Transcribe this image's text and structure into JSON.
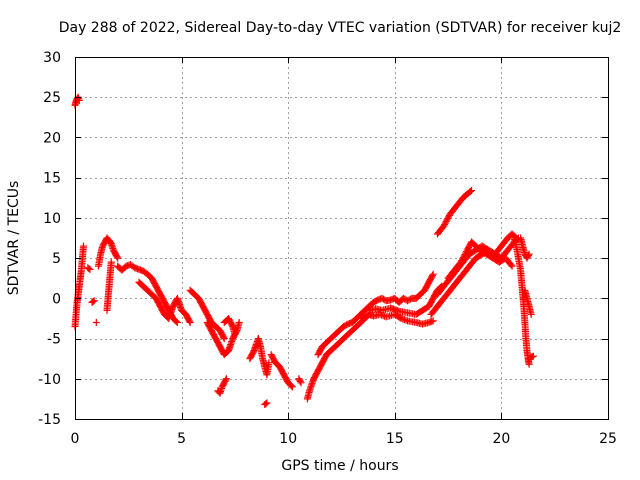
{
  "chart_data": {
    "type": "scatter",
    "title": "Day 288 of 2022, Sidereal Day-to-day VTEC variation (SDTVAR) for receiver kuj2",
    "xlabel": "GPS time / hours",
    "ylabel": "SDTVAR / TECUs",
    "xlim": [
      0,
      25
    ],
    "ylim": [
      -15,
      30
    ],
    "x_ticks": [
      0,
      5,
      10,
      15,
      20,
      25
    ],
    "y_ticks": [
      -15,
      -10,
      -5,
      0,
      5,
      10,
      15,
      20,
      25,
      30
    ],
    "grid": true,
    "marker": "+",
    "series_color": "#ff0000",
    "series": [
      {
        "name": "SDTVAR",
        "segments": [
          [
            [
              0.0,
              24.0
            ],
            [
              0.05,
              24.5
            ],
            [
              0.1,
              24.8
            ],
            [
              0.15,
              25.0
            ],
            [
              0.2,
              24.6
            ]
          ],
          [
            [
              0.0,
              -3.5
            ],
            [
              0.05,
              -2.0
            ],
            [
              0.1,
              -0.5
            ],
            [
              0.15,
              0.5
            ],
            [
              0.2,
              1.5
            ],
            [
              0.25,
              2.5
            ],
            [
              0.3,
              3.5
            ],
            [
              0.35,
              5.0
            ],
            [
              0.4,
              6.5
            ]
          ],
          [
            [
              0.6,
              3.8
            ],
            [
              0.7,
              3.6
            ]
          ],
          [
            [
              0.8,
              -0.5
            ],
            [
              0.9,
              -0.3
            ]
          ],
          [
            [
              1.0,
              -3.0
            ]
          ],
          [
            [
              1.1,
              4.0
            ],
            [
              1.2,
              5.5
            ],
            [
              1.3,
              6.5
            ],
            [
              1.4,
              7.0
            ],
            [
              1.5,
              7.5
            ],
            [
              1.6,
              7.2
            ],
            [
              1.7,
              6.8
            ],
            [
              1.8,
              6.0
            ],
            [
              1.9,
              5.5
            ],
            [
              2.0,
              5.0
            ]
          ],
          [
            [
              1.5,
              -1.5
            ],
            [
              1.55,
              0.0
            ],
            [
              1.6,
              1.5
            ],
            [
              1.65,
              3.0
            ],
            [
              1.7,
              4.5
            ]
          ],
          [
            [
              2.0,
              4.0
            ],
            [
              2.2,
              3.5
            ],
            [
              2.4,
              4.0
            ],
            [
              2.6,
              4.2
            ],
            [
              2.8,
              3.8
            ],
            [
              3.0,
              3.6
            ],
            [
              3.2,
              3.4
            ],
            [
              3.4,
              3.0
            ],
            [
              3.6,
              2.5
            ],
            [
              3.8,
              1.5
            ],
            [
              4.0,
              0.5
            ],
            [
              4.2,
              -0.5
            ],
            [
              4.4,
              -1.5
            ],
            [
              4.6,
              -2.5
            ],
            [
              4.8,
              -3.0
            ]
          ],
          [
            [
              3.0,
              2.0
            ],
            [
              3.2,
              1.5
            ],
            [
              3.4,
              1.0
            ],
            [
              3.6,
              0.5
            ],
            [
              3.8,
              0.0
            ],
            [
              4.0,
              -1.0
            ],
            [
              4.2,
              -2.0
            ],
            [
              4.4,
              -2.5
            ],
            [
              4.6,
              -1.0
            ],
            [
              4.8,
              0.0
            ],
            [
              5.0,
              -1.5
            ],
            [
              5.2,
              -2.0
            ],
            [
              5.4,
              -3.0
            ]
          ],
          [
            [
              5.4,
              1.0
            ],
            [
              5.6,
              0.5
            ],
            [
              5.8,
              0.0
            ],
            [
              6.0,
              -1.0
            ],
            [
              6.2,
              -2.0
            ],
            [
              6.4,
              -3.0
            ],
            [
              6.6,
              -3.5
            ],
            [
              6.8,
              -4.0
            ],
            [
              7.0,
              -5.0
            ]
          ],
          [
            [
              6.2,
              -3.0
            ],
            [
              6.4,
              -4.0
            ],
            [
              6.6,
              -5.0
            ],
            [
              6.8,
              -6.0
            ],
            [
              7.0,
              -7.0
            ],
            [
              7.2,
              -6.5
            ],
            [
              7.4,
              -5.0
            ],
            [
              7.6,
              -4.0
            ],
            [
              7.7,
              -3.0
            ]
          ],
          [
            [
              7.0,
              -3.0
            ],
            [
              7.2,
              -2.5
            ],
            [
              7.4,
              -3.5
            ],
            [
              7.5,
              -4.5
            ]
          ],
          [
            [
              6.7,
              -11.5
            ],
            [
              6.8,
              -11.8
            ],
            [
              6.9,
              -11.0
            ],
            [
              7.0,
              -10.5
            ],
            [
              7.1,
              -10.0
            ]
          ],
          [
            [
              8.2,
              -7.5
            ],
            [
              8.4,
              -6.5
            ],
            [
              8.6,
              -5.0
            ],
            [
              8.7,
              -6.0
            ],
            [
              8.8,
              -7.5
            ],
            [
              8.9,
              -8.5
            ],
            [
              9.0,
              -9.5
            ],
            [
              9.1,
              -8.0
            ]
          ],
          [
            [
              8.9,
              -13.2
            ],
            [
              9.0,
              -13.0
            ]
          ],
          [
            [
              9.2,
              -7.0
            ],
            [
              9.4,
              -8.0
            ],
            [
              9.6,
              -8.5
            ],
            [
              9.8,
              -9.5
            ],
            [
              10.0,
              -10.5
            ],
            [
              10.2,
              -11.0
            ]
          ],
          [
            [
              10.5,
              -10.0
            ],
            [
              10.6,
              -10.5
            ]
          ],
          [
            [
              10.9,
              -12.5
            ],
            [
              11.0,
              -11.5
            ],
            [
              11.2,
              -10.0
            ],
            [
              11.4,
              -9.0
            ],
            [
              11.6,
              -8.0
            ],
            [
              11.8,
              -7.0
            ],
            [
              12.0,
              -6.5
            ],
            [
              12.2,
              -6.0
            ],
            [
              12.4,
              -5.5
            ],
            [
              12.6,
              -5.0
            ],
            [
              12.8,
              -4.5
            ],
            [
              13.0,
              -4.0
            ],
            [
              13.2,
              -3.5
            ],
            [
              13.4,
              -3.0
            ],
            [
              13.6,
              -2.5
            ],
            [
              13.8,
              -2.0
            ]
          ],
          [
            [
              11.4,
              -7.0
            ],
            [
              11.6,
              -6.0
            ],
            [
              11.8,
              -5.5
            ],
            [
              12.0,
              -5.0
            ],
            [
              12.2,
              -4.5
            ],
            [
              12.4,
              -4.0
            ],
            [
              12.6,
              -3.5
            ],
            [
              12.8,
              -3.2
            ],
            [
              13.0,
              -3.0
            ],
            [
              13.2,
              -2.5
            ],
            [
              13.4,
              -2.0
            ],
            [
              13.6,
              -1.5
            ],
            [
              13.8,
              -1.0
            ]
          ],
          [
            [
              13.8,
              -1.0
            ],
            [
              14.0,
              -0.5
            ],
            [
              14.2,
              -0.2
            ],
            [
              14.4,
              0.0
            ],
            [
              14.6,
              -0.3
            ],
            [
              14.8,
              -0.2
            ],
            [
              15.0,
              0.0
            ],
            [
              15.2,
              -0.5
            ],
            [
              15.4,
              0.0
            ],
            [
              15.6,
              -0.3
            ],
            [
              15.8,
              0.0
            ],
            [
              16.0,
              0.0
            ],
            [
              16.2,
              0.5
            ],
            [
              16.4,
              1.0
            ],
            [
              16.6,
              2.0
            ],
            [
              16.8,
              3.0
            ]
          ],
          [
            [
              13.5,
              -2.5
            ],
            [
              13.8,
              -2.0
            ],
            [
              14.0,
              -2.2
            ],
            [
              14.3,
              -2.0
            ],
            [
              14.6,
              -2.3
            ],
            [
              15.0,
              -2.0
            ],
            [
              15.3,
              -2.5
            ],
            [
              15.6,
              -2.8
            ],
            [
              16.0,
              -3.0
            ],
            [
              16.3,
              -3.2
            ],
            [
              16.6,
              -3.0
            ],
            [
              16.8,
              -2.8
            ]
          ],
          [
            [
              13.8,
              -1.5
            ],
            [
              14.1,
              -1.3
            ],
            [
              14.4,
              -1.5
            ],
            [
              14.8,
              -1.2
            ],
            [
              15.2,
              -1.6
            ],
            [
              15.6,
              -1.8
            ],
            [
              16.0,
              -2.0
            ],
            [
              16.3,
              -1.5
            ],
            [
              16.6,
              -1.0
            ],
            [
              16.8,
              0.0
            ],
            [
              17.0,
              1.0
            ],
            [
              17.2,
              1.5
            ]
          ],
          [
            [
              16.7,
              -2.0
            ],
            [
              17.0,
              -1.0
            ],
            [
              17.3,
              0.0
            ],
            [
              17.6,
              1.0
            ],
            [
              17.9,
              2.0
            ],
            [
              18.2,
              3.0
            ],
            [
              18.5,
              4.0
            ],
            [
              18.8,
              5.0
            ],
            [
              19.1,
              5.5
            ],
            [
              19.4,
              5.8
            ],
            [
              19.7,
              5.5
            ],
            [
              20.0,
              5.0
            ],
            [
              20.3,
              6.0
            ],
            [
              20.6,
              7.0
            ],
            [
              20.8,
              7.5
            ]
          ],
          [
            [
              17.0,
              0.5
            ],
            [
              17.3,
              1.5
            ],
            [
              17.6,
              2.5
            ],
            [
              17.9,
              3.5
            ],
            [
              18.2,
              4.5
            ],
            [
              18.5,
              5.5
            ],
            [
              18.8,
              6.0
            ],
            [
              19.1,
              6.5
            ],
            [
              19.4,
              6.0
            ],
            [
              19.7,
              5.5
            ],
            [
              20.0,
              6.5
            ],
            [
              20.3,
              7.5
            ],
            [
              20.5,
              8.0
            ],
            [
              20.7,
              7.5
            ]
          ],
          [
            [
              17.5,
              2.5
            ],
            [
              17.8,
              3.5
            ],
            [
              18.1,
              4.5
            ],
            [
              18.4,
              6.0
            ],
            [
              18.6,
              7.0
            ],
            [
              18.8,
              6.5
            ],
            [
              19.0,
              6.0
            ],
            [
              19.3,
              5.5
            ],
            [
              19.6,
              5.0
            ],
            [
              19.9,
              4.5
            ],
            [
              20.2,
              5.0
            ],
            [
              20.5,
              4.0
            ]
          ],
          [
            [
              17.0,
              8.0
            ],
            [
              17.3,
              9.0
            ],
            [
              17.6,
              10.5
            ],
            [
              17.9,
              11.5
            ],
            [
              18.2,
              12.5
            ],
            [
              18.5,
              13.2
            ],
            [
              18.6,
              13.4
            ]
          ],
          [
            [
              20.6,
              7.5
            ],
            [
              20.7,
              6.5
            ],
            [
              20.8,
              5.0
            ],
            [
              20.9,
              3.5
            ],
            [
              20.95,
              2.0
            ],
            [
              21.0,
              0.5
            ],
            [
              21.05,
              -1.0
            ],
            [
              21.1,
              -3.0
            ],
            [
              21.15,
              -5.0
            ],
            [
              21.2,
              -6.5
            ],
            [
              21.25,
              -7.5
            ],
            [
              21.3,
              -8.2
            ]
          ],
          [
            [
              20.9,
              7.5
            ],
            [
              21.0,
              6.5
            ],
            [
              21.1,
              5.5
            ],
            [
              21.2,
              5.0
            ],
            [
              21.3,
              5.5
            ]
          ],
          [
            [
              21.3,
              -7.5
            ],
            [
              21.4,
              -7.3
            ],
            [
              21.5,
              -7.2
            ]
          ],
          [
            [
              21.1,
              1.0
            ],
            [
              21.2,
              0.0
            ],
            [
              21.3,
              -1.0
            ],
            [
              21.4,
              -2.0
            ]
          ]
        ]
      }
    ]
  }
}
